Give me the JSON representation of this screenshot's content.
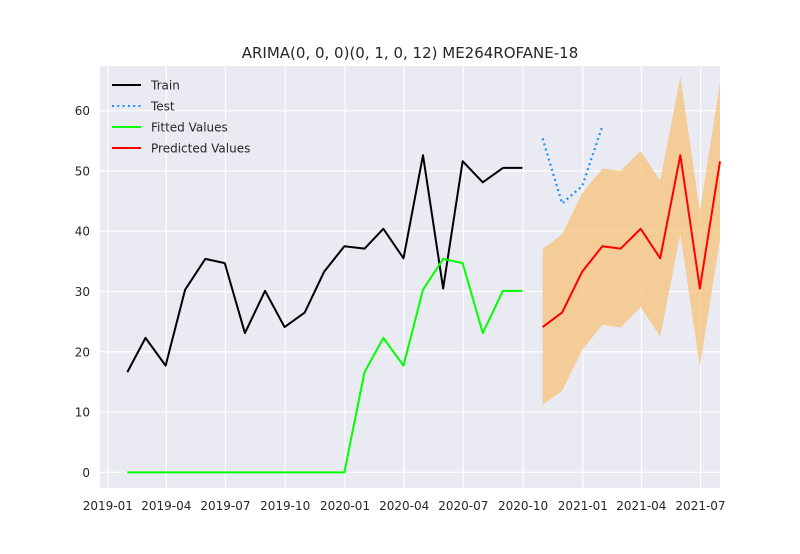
{
  "chart_data": {
    "type": "line",
    "title": "ARIMA(0, 0, 0)(0, 1, 0, 12) ME264ROFANE-18",
    "xlabel": "",
    "ylabel": "",
    "x_range": [
      "2018-12-20",
      "2021-07-31"
    ],
    "ylim": [
      -2.6,
      67.4
    ],
    "grid": true,
    "legend_position": "top-left",
    "x_ticks": [
      {
        "label": "2019-01",
        "date": "2019-01-01"
      },
      {
        "label": "2019-04",
        "date": "2019-04-01"
      },
      {
        "label": "2019-07",
        "date": "2019-07-01"
      },
      {
        "label": "2019-10",
        "date": "2019-10-01"
      },
      {
        "label": "2020-01",
        "date": "2020-01-01"
      },
      {
        "label": "2020-04",
        "date": "2020-04-01"
      },
      {
        "label": "2020-07",
        "date": "2020-07-01"
      },
      {
        "label": "2020-10",
        "date": "2020-10-01"
      },
      {
        "label": "2021-01",
        "date": "2021-01-01"
      },
      {
        "label": "2021-04",
        "date": "2021-04-01"
      },
      {
        "label": "2021-07",
        "date": "2021-07-01"
      }
    ],
    "y_ticks": [
      0,
      10,
      20,
      30,
      40,
      50,
      60
    ],
    "series": [
      {
        "name": "Train",
        "color": "#000000",
        "style": "solid",
        "x": [
          "2019-01-31",
          "2019-02-28",
          "2019-03-31",
          "2019-04-30",
          "2019-05-31",
          "2019-06-30",
          "2019-07-31",
          "2019-08-31",
          "2019-09-30",
          "2019-10-31",
          "2019-11-30",
          "2019-12-31",
          "2020-01-31",
          "2020-02-29",
          "2020-03-31",
          "2020-04-30",
          "2020-05-31",
          "2020-06-30",
          "2020-07-31",
          "2020-08-31",
          "2020-09-30"
        ],
        "y": [
          16.6,
          22.3,
          17.7,
          30.3,
          35.4,
          34.7,
          23.1,
          30.1,
          24.1,
          26.5,
          33.3,
          37.5,
          37.1,
          40.4,
          35.5,
          52.6,
          30.5,
          51.6,
          48.1,
          50.5,
          50.5
        ]
      },
      {
        "name": "Test",
        "color": "#1e90ff",
        "style": "dotted",
        "x": [
          "2020-10-31",
          "2020-11-30",
          "2020-12-31",
          "2021-01-31"
        ],
        "y": [
          55.4,
          44.6,
          47.5,
          57.4
        ]
      },
      {
        "name": "Fitted Values",
        "color": "#00ff00",
        "style": "solid",
        "x": [
          "2019-01-31",
          "2019-02-28",
          "2019-03-31",
          "2019-04-30",
          "2019-05-31",
          "2019-06-30",
          "2019-07-31",
          "2019-08-31",
          "2019-09-30",
          "2019-10-31",
          "2019-11-30",
          "2019-12-31",
          "2020-01-31",
          "2020-02-29",
          "2020-03-31",
          "2020-04-30",
          "2020-05-31",
          "2020-06-30",
          "2020-07-31",
          "2020-08-31",
          "2020-09-30"
        ],
        "y": [
          0,
          0,
          0,
          0,
          0,
          0,
          0,
          0,
          0,
          0,
          0,
          0,
          16.6,
          22.3,
          17.7,
          30.3,
          35.4,
          34.7,
          23.1,
          30.1,
          30.1
        ]
      },
      {
        "name": "Predicted Values",
        "color": "#ff0000",
        "style": "solid",
        "x": [
          "2020-10-31",
          "2020-11-30",
          "2020-12-31",
          "2021-01-31",
          "2021-02-28",
          "2021-03-31",
          "2021-04-30",
          "2021-05-31",
          "2021-06-30",
          "2021-07-31"
        ],
        "y": [
          24.1,
          26.5,
          33.3,
          37.5,
          37.1,
          40.4,
          35.5,
          52.6,
          30.5,
          51.6
        ]
      }
    ],
    "confidence_band": {
      "color": "#f5c27a",
      "x": [
        "2020-10-31",
        "2020-11-30",
        "2020-12-31",
        "2021-01-31",
        "2021-02-28",
        "2021-03-31",
        "2021-04-30",
        "2021-05-31",
        "2021-06-30",
        "2021-07-31"
      ],
      "lower": [
        11.2,
        13.5,
        20.3,
        24.5,
        24.0,
        27.4,
        22.5,
        39.5,
        17.5,
        38.6
      ],
      "upper": [
        37.0,
        39.5,
        46.3,
        50.4,
        50.0,
        53.3,
        48.4,
        65.6,
        43.4,
        64.6
      ]
    }
  }
}
